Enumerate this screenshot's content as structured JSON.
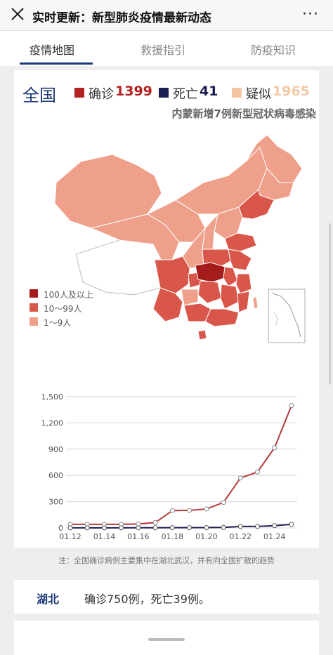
{
  "topbar": {
    "title": "实时更新：新型肺炎疫情最新动态",
    "more": "···"
  },
  "tabs": [
    {
      "label": "疫情地图",
      "active": true
    },
    {
      "label": "救援指引",
      "active": false
    },
    {
      "label": "防疫知识",
      "active": false
    }
  ],
  "summary": {
    "region": "全国",
    "confirmed_label": "确诊",
    "confirmed_value": "1399",
    "dead_label": "死亡",
    "dead_value": "41",
    "suspect_label": "疑似",
    "suspect_value": "1965",
    "headline": "内蒙新增7例新型冠状病毒感染"
  },
  "colors": {
    "confirmed": "#b22222",
    "dead": "#1a1f4f",
    "suspect": "#f5c5a3",
    "level_100": "#a51c1c",
    "level_10": "#d9574a",
    "level_1": "#eea08a",
    "nodata": "#ffffff",
    "brand": "#1f3a7a"
  },
  "map_legend": [
    "100人及以上",
    "10～99人",
    "1～9人"
  ],
  "chart_data": {
    "type": "line",
    "x": [
      "01.12",
      "01.13",
      "01.14",
      "01.15",
      "01.16",
      "01.17",
      "01.18",
      "01.19",
      "01.20",
      "01.21",
      "01.22",
      "01.23",
      "01.24",
      "01.25"
    ],
    "x_tick_labels": [
      "01.12",
      "01.14",
      "01.16",
      "01.18",
      "01.20",
      "01.22",
      "01.24"
    ],
    "series": [
      {
        "color": "#b33a3a",
        "values": [
          41,
          41,
          41,
          41,
          45,
          62,
          198,
          201,
          217,
          291,
          571,
          639,
          916,
          1399
        ]
      },
      {
        "color": "#1a1f4f",
        "values": [
          1,
          1,
          1,
          1,
          2,
          2,
          3,
          3,
          4,
          6,
          17,
          17,
          26,
          41
        ]
      }
    ],
    "ylim": [
      0,
      1500
    ],
    "y_ticks": [
      0,
      300,
      600,
      900,
      1200,
      1500
    ],
    "y_tick_labels": [
      "0",
      "300",
      "600",
      "900",
      "1,200",
      "1,500"
    ],
    "grid": true
  },
  "note": "注：全国确诊病例主要集中在湖北武汉，并有向全国扩散的趋势",
  "province": {
    "name": "湖北",
    "stats": "确诊750例，死亡39例。"
  }
}
